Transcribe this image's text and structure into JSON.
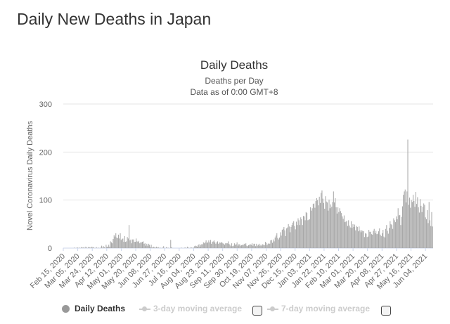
{
  "page": {
    "heading": "Daily New Deaths in Japan"
  },
  "chart_data": {
    "type": "bar",
    "title": "Daily Deaths",
    "subtitle_line1": "Deaths per Day",
    "subtitle_line2": "Data as of 0:00 GMT+8",
    "xlabel": "",
    "ylabel": "Novel Coronavirus Daily Deaths",
    "ylim": [
      0,
      300
    ],
    "yticks": [
      0,
      100,
      200,
      300
    ],
    "grid": true,
    "legend_position": "bottom",
    "x_start": "2020-02-15",
    "x_end": "2021-06-14",
    "xtick_labels": [
      "Feb 15, 2020",
      "Mar 05, 2020",
      "Mar 24, 2020",
      "Apr 12, 2020",
      "May 01, 2020",
      "May 20, 2020",
      "Jun 08, 2020",
      "Jun 27, 2020",
      "Jul 16, 2020",
      "Aug 04, 2020",
      "Aug 23, 2020",
      "Sep 11, 2020",
      "Sep 30, 2020",
      "Oct 19, 2020",
      "Nov 07, 2020",
      "Nov 26, 2020",
      "Dec 15, 2020",
      "Jan 03, 2021",
      "Jan 22, 2021",
      "Feb 10, 2021",
      "Mar 01, 2021",
      "Mar 20, 2021",
      "Apr 08, 2021",
      "Apr 27, 2021",
      "May 16, 2021",
      "Jun 04, 2021"
    ],
    "values": [
      0,
      0,
      0,
      0,
      0,
      0,
      0,
      0,
      0,
      0,
      0,
      0,
      1,
      0,
      0,
      1,
      1,
      0,
      1,
      0,
      2,
      1,
      1,
      2,
      0,
      3,
      1,
      0,
      2,
      2,
      1,
      1,
      3,
      1,
      2,
      0,
      0,
      2,
      0,
      1,
      0,
      0,
      1,
      5,
      1,
      4,
      2,
      0,
      7,
      3,
      3,
      7,
      3,
      14,
      12,
      10,
      19,
      27,
      24,
      31,
      22,
      21,
      28,
      20,
      31,
      17,
      19,
      20,
      13,
      25,
      13,
      14,
      23,
      20,
      48,
      16,
      18,
      10,
      18,
      18,
      13,
      13,
      20,
      14,
      13,
      15,
      10,
      12,
      12,
      13,
      14,
      9,
      10,
      5,
      9,
      5,
      9,
      7,
      2,
      7,
      1,
      2,
      3,
      1,
      1,
      3,
      1,
      2,
      0,
      1,
      0,
      0,
      1,
      4,
      0,
      0,
      2,
      0,
      1,
      0,
      0,
      17,
      2,
      0,
      0,
      0,
      0,
      0,
      0,
      0,
      0,
      0,
      0,
      1,
      0,
      0,
      0,
      1,
      1,
      0,
      3,
      1,
      0,
      0,
      2,
      1,
      0,
      1,
      4,
      5,
      4,
      3,
      6,
      8,
      3,
      7,
      8,
      8,
      12,
      10,
      12,
      16,
      11,
      12,
      16,
      12,
      17,
      9,
      13,
      14,
      16,
      12,
      9,
      12,
      14,
      9,
      12,
      11,
      12,
      12,
      10,
      9,
      7,
      10,
      10,
      10,
      14,
      9,
      7,
      4,
      10,
      4,
      5,
      10,
      7,
      8,
      12,
      5,
      8,
      8,
      5,
      6,
      7,
      6,
      9,
      8,
      10,
      5,
      4,
      6,
      7,
      8,
      7,
      10,
      5,
      9,
      9,
      4,
      9,
      5,
      7,
      9,
      5,
      7,
      5,
      8,
      7,
      6,
      13,
      11,
      6,
      9,
      10,
      9,
      16,
      17,
      11,
      18,
      14,
      22,
      26,
      31,
      21,
      18,
      22,
      33,
      26,
      38,
      40,
      44,
      37,
      25,
      41,
      43,
      50,
      45,
      33,
      44,
      48,
      53,
      56,
      46,
      39,
      55,
      48,
      62,
      58,
      48,
      64,
      60,
      48,
      67,
      66,
      58,
      75,
      73,
      58,
      59,
      60,
      85,
      78,
      83,
      92,
      93,
      84,
      98,
      104,
      100,
      89,
      107,
      94,
      115,
      120,
      103,
      94,
      82,
      108,
      97,
      95,
      78,
      101,
      83,
      91,
      86,
      96,
      118,
      95,
      104,
      85,
      72,
      85,
      75,
      83,
      77,
      73,
      66,
      61,
      68,
      54,
      55,
      57,
      46,
      58,
      47,
      43,
      56,
      42,
      50,
      44,
      49,
      37,
      46,
      44,
      35,
      45,
      37,
      33,
      37,
      36,
      35,
      23,
      31,
      30,
      23,
      24,
      38,
      34,
      34,
      29,
      28,
      36,
      40,
      31,
      36,
      29,
      30,
      35,
      41,
      28,
      25,
      31,
      38,
      24,
      22,
      40,
      48,
      36,
      30,
      42,
      56,
      50,
      48,
      40,
      62,
      58,
      54,
      66,
      60,
      83,
      68,
      69,
      48,
      65,
      87,
      111,
      118,
      122,
      95,
      118,
      226,
      90,
      105,
      84,
      100,
      96,
      111,
      98,
      86,
      117,
      92,
      106,
      85,
      74,
      102,
      88,
      75,
      86,
      93,
      90,
      64,
      60,
      79,
      52,
      96,
      58,
      46,
      75,
      45
    ]
  },
  "legend": {
    "items": [
      {
        "label": "Daily Deaths",
        "color": "#999999"
      },
      {
        "label": "3-day moving average",
        "color": "#cccccc"
      },
      {
        "label": "7-day moving average",
        "color": "#cccccc"
      }
    ]
  },
  "colors": {
    "bar": "#a6a6a6",
    "grid": "#e6e6e6",
    "axis_text": "#666666"
  }
}
